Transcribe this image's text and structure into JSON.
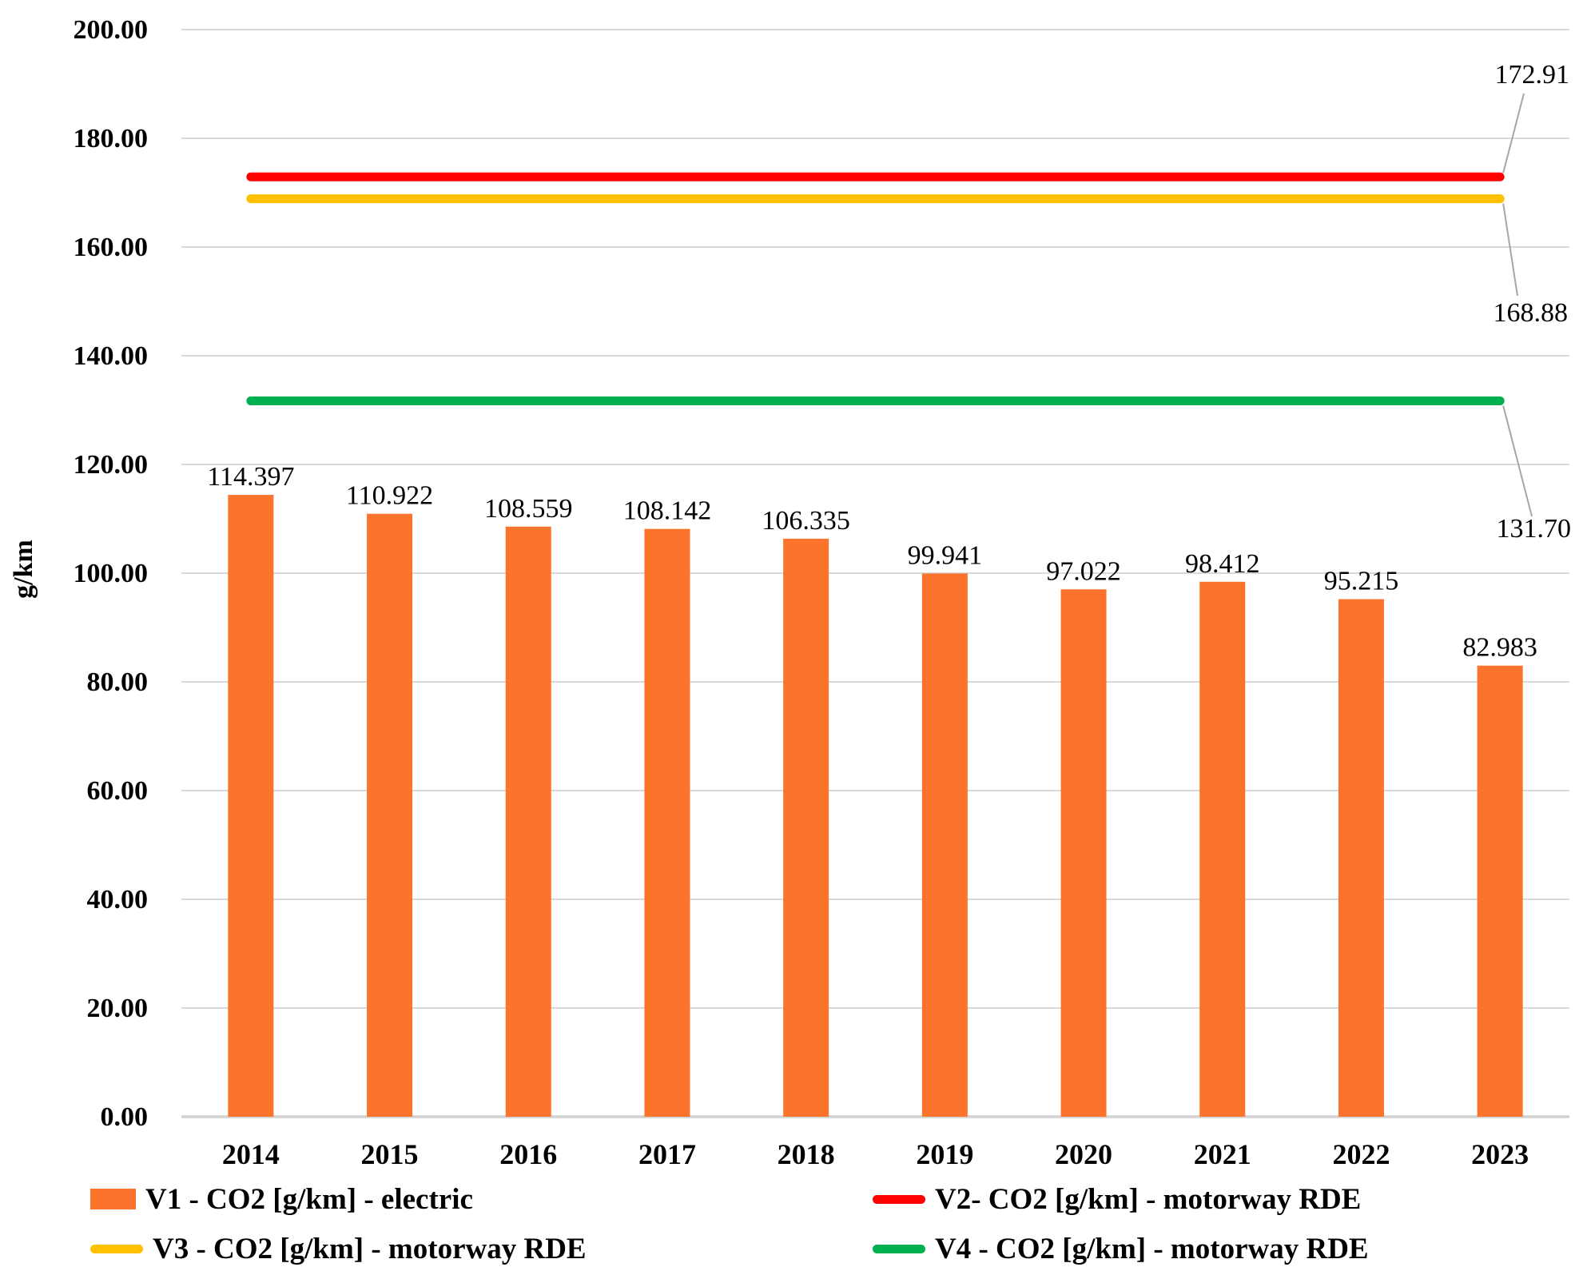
{
  "chart_data": {
    "type": "bar",
    "title": "",
    "xlabel": "",
    "ylabel": "g/km",
    "categories": [
      "2014",
      "2015",
      "2016",
      "2017",
      "2018",
      "2019",
      "2020",
      "2021",
      "2022",
      "2023"
    ],
    "series": [
      {
        "name": "V1 - CO2 [g/km] - electric",
        "type": "bar",
        "color": "#FC732B",
        "values": [
          114.397,
          110.922,
          108.559,
          108.142,
          106.335,
          99.941,
          97.022,
          98.412,
          95.215,
          82.983
        ],
        "value_labels": [
          "114.397",
          "110.922",
          "108.559",
          "108.142",
          "106.335",
          "99.941",
          "97.022",
          "98.412",
          "95.215",
          "82.983"
        ]
      },
      {
        "name": "V2- CO2 [g/km] - motorway RDE",
        "type": "line",
        "color": "#FE0000",
        "value": 172.91,
        "value_label": "172.91"
      },
      {
        "name": "V3 - CO2 [g/km] - motorway RDE",
        "type": "line",
        "color": "#FFC000",
        "value": 168.88,
        "value_label": "168.88"
      },
      {
        "name": "V4 - CO2 [g/km] - motorway RDE",
        "type": "line",
        "color": "#00B050",
        "value": 131.7,
        "value_label": "131.70"
      }
    ],
    "ylim": [
      0,
      200
    ],
    "ytick_step": 20,
    "ytick_labels": [
      "0.00",
      "20.00",
      "40.00",
      "60.00",
      "80.00",
      "100.00",
      "120.00",
      "140.00",
      "160.00",
      "180.00",
      "200.00"
    ],
    "grid": true,
    "legend_position": "bottom",
    "colors": {
      "gridline": "#D9D9D9",
      "baseline": "#D2D2D2",
      "leader_line": "#A6A6A6",
      "text": "#000000"
    }
  }
}
